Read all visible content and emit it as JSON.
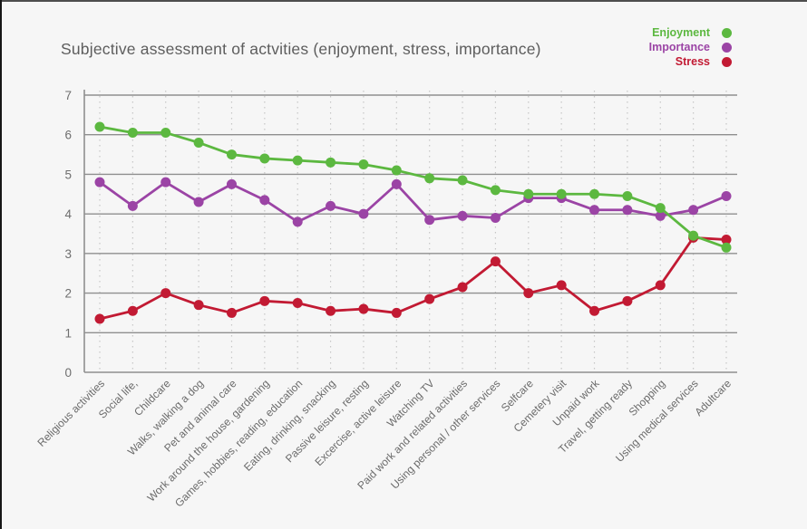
{
  "title": "Subjective assessment of actvities (enjoyment, stress, importance)",
  "colors": {
    "background": "#f6f6f6",
    "top_edge": "#4e4e4e",
    "left_edge": "#161616",
    "title_text": "#5d5d5d",
    "grid_solid": "#8f8f8f",
    "grid_dotted": "#c6c6c6",
    "tick_text": "#6b6b6b"
  },
  "chart_data": {
    "type": "line",
    "title": "Subjective assessment of actvities (enjoyment, stress, importance)",
    "xlabel": "",
    "ylabel": "",
    "ylim": [
      0,
      7
    ],
    "yticks": [
      0,
      1,
      2,
      3,
      4,
      5,
      6,
      7
    ],
    "grid": {
      "horizontal": "solid",
      "vertical": "dotted"
    },
    "legend_position": "top-right",
    "categories": [
      "Religious activities",
      "Social life,",
      "Childcare",
      "Walks, walking a dog",
      "Pet and animal care",
      "Work around the house, gardening",
      "Games, hobbies, reading, education",
      "Eating, drinking, snacking",
      "Passive leisure, resting",
      "Excercise, active leisure",
      "Watching TV",
      "Paid work and related activities",
      "Using personal / other services",
      "Selfcare",
      "Cemetery visit",
      "Unpaid work",
      "Travel, getting ready",
      "Shopping",
      "Using medical services",
      "Adultcare"
    ],
    "series": [
      {
        "name": "Enjoyment",
        "color": "#5cb840",
        "values": [
          6.2,
          6.05,
          6.05,
          5.8,
          5.5,
          5.4,
          5.35,
          5.3,
          5.25,
          5.1,
          4.9,
          4.85,
          4.6,
          4.5,
          4.5,
          4.5,
          4.45,
          4.15,
          3.45,
          3.15
        ]
      },
      {
        "name": "Importance",
        "color": "#9b44a5",
        "values": [
          4.8,
          4.2,
          4.8,
          4.3,
          4.75,
          4.35,
          3.8,
          4.2,
          4.0,
          4.75,
          3.85,
          3.95,
          3.9,
          4.4,
          4.4,
          4.1,
          4.1,
          3.95,
          4.1,
          4.45
        ]
      },
      {
        "name": "Stress",
        "color": "#c21a33",
        "values": [
          1.35,
          1.55,
          2.0,
          1.7,
          1.5,
          1.8,
          1.75,
          1.55,
          1.6,
          1.5,
          1.85,
          2.15,
          2.8,
          2.0,
          2.2,
          1.55,
          1.8,
          2.2,
          3.4,
          3.35
        ]
      }
    ]
  }
}
